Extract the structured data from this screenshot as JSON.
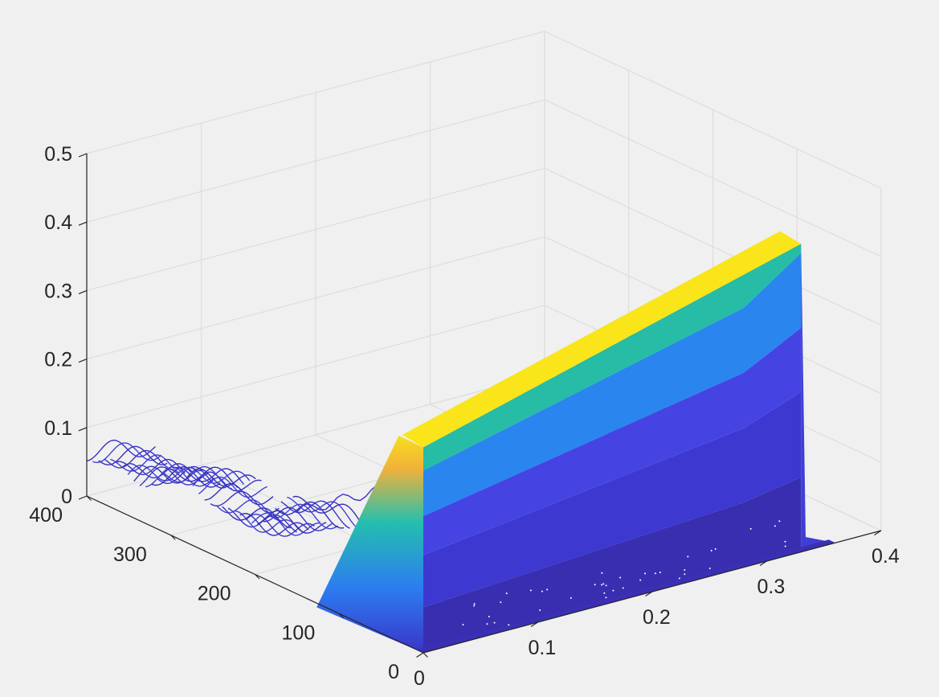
{
  "chart_data": {
    "type": "surface",
    "title": "",
    "xlabel": "",
    "ylabel": "",
    "zlabel": "",
    "x_axis": {
      "range": [
        0,
        0.4
      ],
      "ticks": [
        0,
        0.1,
        0.2,
        0.3,
        0.4
      ],
      "tick_labels": [
        "0",
        "0.1",
        "0.2",
        "0.3",
        "0.4"
      ]
    },
    "y_axis": {
      "range": [
        0,
        400
      ],
      "ticks": [
        0,
        100,
        200,
        300,
        400
      ],
      "tick_labels": [
        "0",
        "100",
        "200",
        "300",
        "400"
      ]
    },
    "z_axis": {
      "range": [
        0,
        0.5
      ],
      "ticks": [
        0,
        0.1,
        0.2,
        0.3,
        0.4,
        0.5
      ],
      "tick_labels": [
        "0",
        "0.1",
        "0.2",
        "0.3",
        "0.4",
        "0.5"
      ]
    },
    "grid": true,
    "colormap": "parula",
    "colormap_colors": [
      "#352a87",
      "#3d3ad4",
      "#2c7df0",
      "#24bfae",
      "#dcb733",
      "#f9e51a"
    ],
    "z_levels": [
      0,
      0.07,
      0.15,
      0.21,
      0.28,
      0.37,
      0.45
    ],
    "plateau": {
      "x_start": 0.0,
      "x_end": 0.33,
      "y_front_edge": 0,
      "y_back_edge": 150,
      "z_at_x_start": 0.3,
      "z_at_x_end": 0.45,
      "x_shoulder": 0.3
    },
    "background_waves": {
      "y_range": [
        150,
        400
      ],
      "z_max_at_y400": 0.06,
      "z_at_back_ridge": 0.12
    },
    "view": {
      "azimuth": -37.5,
      "elevation": 30
    }
  }
}
